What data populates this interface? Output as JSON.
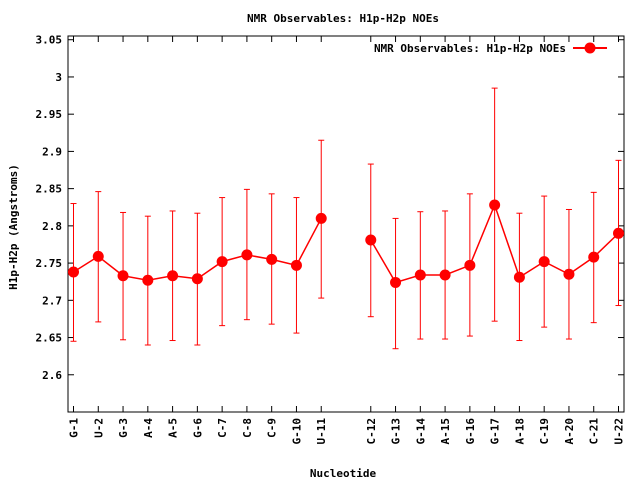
{
  "chart_data": {
    "type": "line",
    "title": "NMR Observables: H1p-H2p NOEs",
    "xlabel": "Nucleotide",
    "ylabel": "H1p-H2p (Angstroms)",
    "ylim": [
      2.55,
      3.055
    ],
    "yticks": [
      2.6,
      2.65,
      2.7,
      2.75,
      2.8,
      2.85,
      2.9,
      2.95,
      3,
      3.05
    ],
    "ytick_labels": [
      "2.6",
      "2.65",
      "2.7",
      "2.75",
      "2.8",
      "2.85",
      "2.9",
      "2.95",
      "3",
      "3.05"
    ],
    "grid": false,
    "legend_position": "top-right",
    "color": "#ff0000",
    "series": [
      {
        "name": "NMR Observables: H1p-H2p NOEs",
        "points": [
          {
            "label": "G-1",
            "index": 1,
            "y": 2.738,
            "err_low": 2.645,
            "err_high": 2.83
          },
          {
            "label": "U-2",
            "index": 2,
            "y": 2.759,
            "err_low": 2.671,
            "err_high": 2.846
          },
          {
            "label": "G-3",
            "index": 3,
            "y": 2.733,
            "err_low": 2.647,
            "err_high": 2.818
          },
          {
            "label": "A-4",
            "index": 4,
            "y": 2.727,
            "err_low": 2.64,
            "err_high": 2.813
          },
          {
            "label": "A-5",
            "index": 5,
            "y": 2.733,
            "err_low": 2.646,
            "err_high": 2.82
          },
          {
            "label": "G-6",
            "index": 6,
            "y": 2.729,
            "err_low": 2.64,
            "err_high": 2.817
          },
          {
            "label": "C-7",
            "index": 7,
            "y": 2.752,
            "err_low": 2.666,
            "err_high": 2.838
          },
          {
            "label": "C-8",
            "index": 8,
            "y": 2.761,
            "err_low": 2.674,
            "err_high": 2.849
          },
          {
            "label": "C-9",
            "index": 9,
            "y": 2.755,
            "err_low": 2.668,
            "err_high": 2.843
          },
          {
            "label": "G-10",
            "index": 10,
            "y": 2.747,
            "err_low": 2.656,
            "err_high": 2.838
          },
          {
            "label": "U-11",
            "index": 11,
            "y": 2.81,
            "err_low": 2.703,
            "err_high": 2.915
          },
          {
            "label": "C-12",
            "index": 13,
            "y": 2.781,
            "err_low": 2.678,
            "err_high": 2.883
          },
          {
            "label": "G-13",
            "index": 14,
            "y": 2.724,
            "err_low": 2.635,
            "err_high": 2.81
          },
          {
            "label": "G-14",
            "index": 15,
            "y": 2.734,
            "err_low": 2.648,
            "err_high": 2.819
          },
          {
            "label": "A-15",
            "index": 16,
            "y": 2.734,
            "err_low": 2.648,
            "err_high": 2.82
          },
          {
            "label": "G-16",
            "index": 17,
            "y": 2.747,
            "err_low": 2.652,
            "err_high": 2.843
          },
          {
            "label": "G-17",
            "index": 18,
            "y": 2.828,
            "err_low": 2.672,
            "err_high": 2.985
          },
          {
            "label": "A-18",
            "index": 19,
            "y": 2.731,
            "err_low": 2.646,
            "err_high": 2.817
          },
          {
            "label": "C-19",
            "index": 20,
            "y": 2.752,
            "err_low": 2.664,
            "err_high": 2.84
          },
          {
            "label": "A-20",
            "index": 21,
            "y": 2.735,
            "err_low": 2.648,
            "err_high": 2.822
          },
          {
            "label": "C-21",
            "index": 22,
            "y": 2.758,
            "err_low": 2.67,
            "err_high": 2.845
          },
          {
            "label": "U-22",
            "index": 23,
            "y": 2.79,
            "err_low": 2.693,
            "err_high": 2.888
          }
        ]
      }
    ]
  }
}
